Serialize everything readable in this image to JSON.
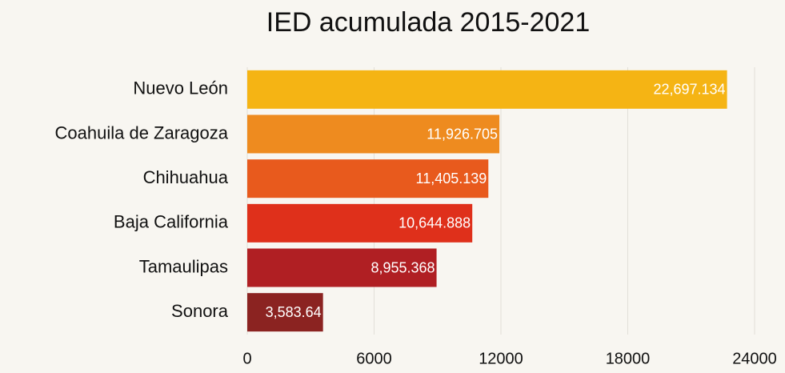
{
  "chart_data": {
    "type": "bar",
    "orientation": "horizontal",
    "title": "IED acumulada 2015-2021",
    "categories": [
      "Nuevo León",
      "Coahuila de Zaragoza",
      "Chihuahua",
      "Baja California",
      "Tamaulipas",
      "Sonora"
    ],
    "values": [
      22697.134,
      11926.705,
      11405.139,
      10644.888,
      8955.368,
      3583.64
    ],
    "value_labels": [
      "22,697.134",
      "11,926.705",
      "11,405.139",
      "10,644.888",
      "8,955.368",
      "3,583.64"
    ],
    "colors": [
      "#f5b414",
      "#ee8b1f",
      "#e85a1d",
      "#df301b",
      "#b01f23",
      "#8b2321"
    ],
    "xlim": [
      0,
      24000
    ],
    "xticks": [
      0,
      6000,
      12000,
      18000,
      24000
    ],
    "grid": true
  }
}
